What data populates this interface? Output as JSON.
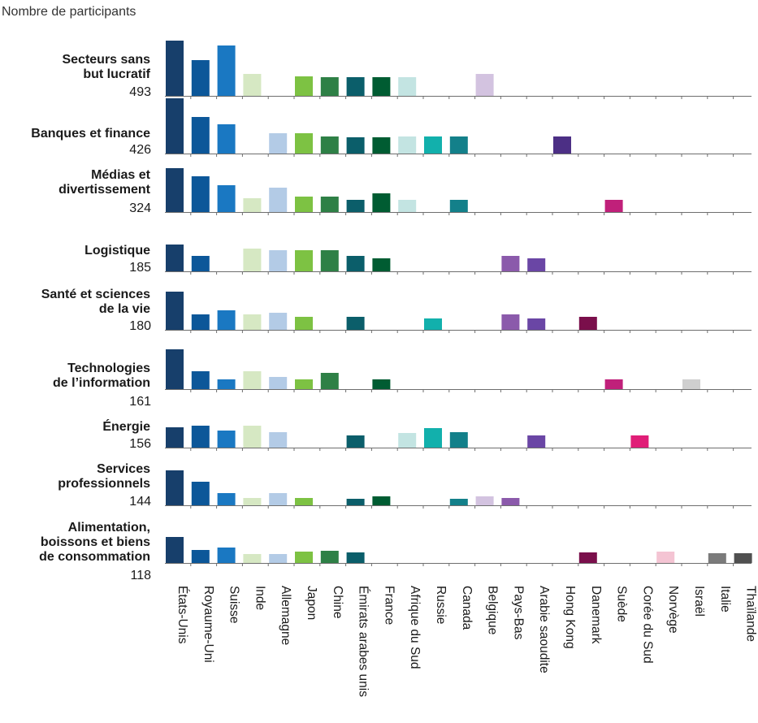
{
  "chart_data": {
    "type": "bar",
    "y_title": "Nombre de participants",
    "countries": [
      "États-Unis",
      "Royaume-Uni",
      "Suisse",
      "Inde",
      "Allemagne",
      "Japon",
      "Chine",
      "Émirats arabes unis",
      "France",
      "Afrique du Sud",
      "Russie",
      "Canada",
      "Belgique",
      "Pays-Bas",
      "Arabie saoudite",
      "Hong Kong",
      "Danemark",
      "Suède",
      "Corée du Sud",
      "Norvège",
      "Israël",
      "Italie",
      "Thaïlande"
    ],
    "colors": [
      "#173f6b",
      "#0c5799",
      "#1a78c2",
      "#d6e8c3",
      "#b3cbe6",
      "#7dc243",
      "#2e8046",
      "#0b5e6a",
      "#005c32",
      "#c3e4e2",
      "#12b0ac",
      "#13808a",
      "#d3c3e0",
      "#8b5aab",
      "#6a46a5",
      "#4c2f85",
      "#7a0f4b",
      "#c0207a",
      "#e01e77",
      "#f4c4d3",
      "#cfcfcf",
      "#7b7b7b",
      "#505050"
    ],
    "sectors": [
      {
        "lines": [
          "Secteurs sans",
          "but lucratif"
        ],
        "total": "493",
        "values": [
          68,
          44,
          62,
          27,
          null,
          24,
          23,
          23,
          23,
          23,
          null,
          null,
          27,
          null,
          null,
          null,
          null,
          null,
          null,
          null,
          null,
          null,
          null
        ]
      },
      {
        "lines": [
          "Banques et finance"
        ],
        "total": "426",
        "values": [
          68,
          45,
          36,
          null,
          25,
          25,
          21,
          20,
          20,
          21,
          21,
          21,
          null,
          null,
          null,
          21,
          null,
          null,
          null,
          null,
          null,
          null,
          null
        ]
      },
      {
        "lines": [
          "Médias et",
          "divertissement"
        ],
        "total": "324",
        "values": [
          54,
          44,
          33,
          17,
          30,
          19,
          19,
          15,
          23,
          15,
          null,
          15,
          null,
          null,
          null,
          null,
          null,
          15,
          null,
          null,
          null,
          null,
          null
        ]
      },
      {
        "lines": [
          "Logistique"
        ],
        "total": "185",
        "values": [
          33,
          19,
          null,
          28,
          26,
          26,
          26,
          19,
          16,
          null,
          null,
          null,
          null,
          19,
          16,
          null,
          null,
          null,
          null,
          null,
          null,
          null,
          null
        ]
      },
      {
        "lines": [
          "Santé et sciences",
          "de la vie"
        ],
        "total": "180",
        "values": [
          47,
          19,
          24,
          19,
          21,
          16,
          null,
          16,
          null,
          null,
          14,
          null,
          null,
          19,
          14,
          null,
          16,
          null,
          null,
          null,
          null,
          null,
          null
        ]
      },
      {
        "lines": [
          "Technologies",
          "de l’information"
        ],
        "total": "161",
        "values": [
          49,
          22,
          12,
          22,
          15,
          12,
          20,
          null,
          12,
          null,
          null,
          null,
          null,
          null,
          null,
          null,
          null,
          12,
          null,
          null,
          12,
          null,
          null
        ]
      },
      {
        "lines": [
          "Énergie"
        ],
        "total": "156",
        "values": [
          25,
          27,
          21,
          27,
          19,
          null,
          null,
          15,
          null,
          18,
          24,
          19,
          null,
          null,
          15,
          null,
          null,
          null,
          15,
          null,
          null,
          null,
          null
        ]
      },
      {
        "lines": [
          "Services",
          "professionnels"
        ],
        "total": "144",
        "values": [
          43,
          29,
          15,
          9,
          15,
          9,
          null,
          8,
          11,
          null,
          null,
          8,
          11,
          9,
          null,
          null,
          null,
          null,
          null,
          null,
          null,
          null,
          null
        ]
      },
      {
        "lines": [
          "Alimentation,",
          "boissons et biens",
          "de consommation"
        ],
        "total": "118",
        "values": [
          32,
          16,
          19,
          11,
          11,
          14,
          15,
          13,
          null,
          null,
          null,
          null,
          null,
          null,
          null,
          null,
          13,
          null,
          null,
          14,
          null,
          12,
          12
        ]
      }
    ]
  }
}
